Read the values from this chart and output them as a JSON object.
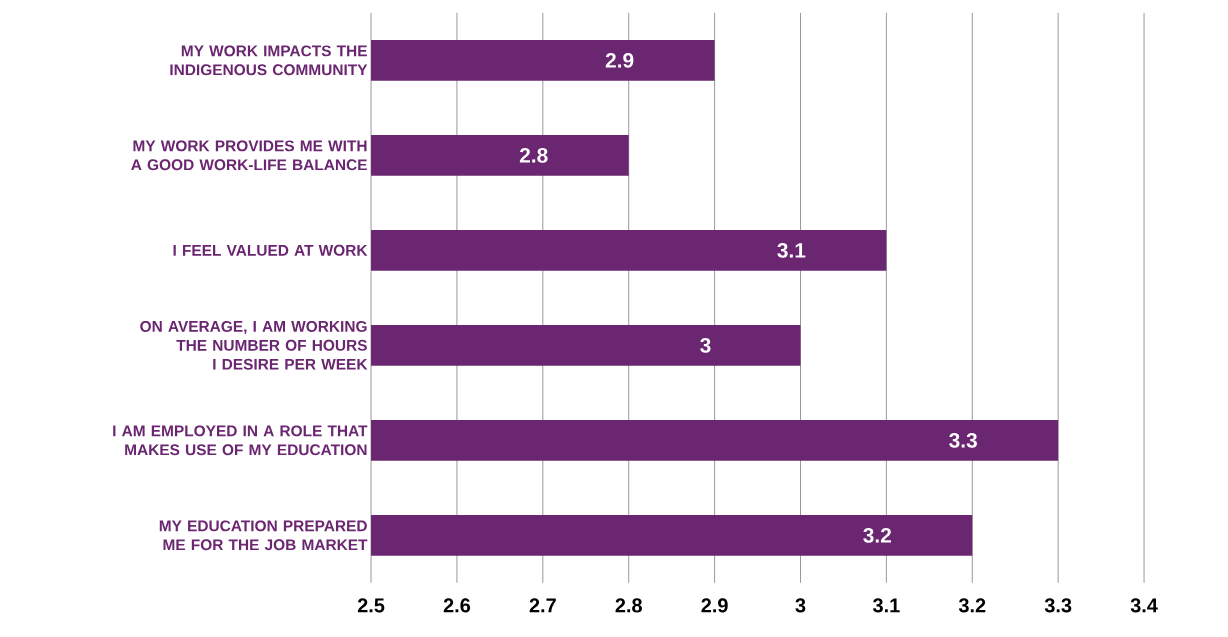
{
  "chart_data": {
    "type": "bar",
    "orientation": "horizontal",
    "categories": [
      "MY WORK IMPACTS THE INDIGENOUS COMMUNITY",
      "MY WORK PROVIDES ME WITH A GOOD WORK-LIFE BALANCE",
      "I FEEL VALUED AT WORK",
      "ON AVERAGE, I AM WORKING THE NUMBER OF HOURS I DESIRE PER WEEK",
      "I AM EMPLOYED IN A ROLE THAT MAKES USE OF MY EDUCATION",
      "MY EDUCATION PREPARED ME FOR THE JOB MARKET"
    ],
    "values": [
      2.9,
      2.8,
      3.1,
      3.0,
      3.3,
      3.2
    ],
    "color": "#6a2670",
    "xlim": [
      2.5,
      3.4
    ],
    "xticks": [
      2.5,
      2.6,
      2.7,
      2.8,
      2.9,
      3,
      3.1,
      3.2,
      3.3,
      3.4
    ],
    "grid": "x",
    "data_labels": true
  }
}
